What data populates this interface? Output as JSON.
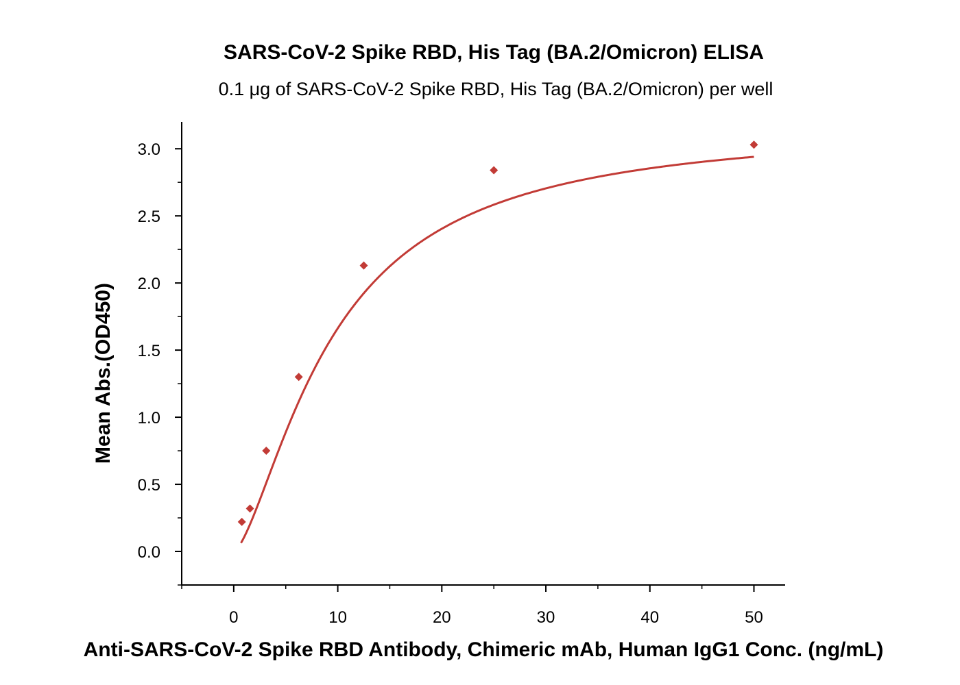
{
  "chart_data": {
    "type": "scatter",
    "title": "SARS-CoV-2 Spike RBD, His Tag (BA.2/Omicron) ELISA",
    "subtitle": "0.1 μg of SARS-CoV-2 Spike RBD, His Tag (BA.2/Omicron) per well",
    "xlabel": "Anti-SARS-CoV-2 Spike RBD Antibody, Chimeric mAb, Human IgG1 Conc. (ng/mL)",
    "ylabel": "Mean Abs.(OD450)",
    "xlim": [
      -5,
      53
    ],
    "ylim": [
      -0.25,
      3.2
    ],
    "x_ticks": [
      0,
      10,
      20,
      30,
      40,
      50
    ],
    "x_tick_labels": [
      "0",
      "10",
      "20",
      "30",
      "40",
      "50"
    ],
    "y_ticks": [
      0.0,
      0.5,
      1.0,
      1.5,
      2.0,
      2.5,
      3.0
    ],
    "y_tick_labels": [
      "0.0",
      "0.5",
      "1.0",
      "1.5",
      "2.0",
      "2.5",
      "3.0"
    ],
    "grid": false,
    "marker_color": "#c23b36",
    "curve_color": "#c23b36",
    "series": [
      {
        "name": "Mean Abs.(OD450)",
        "x": [
          0.78,
          1.56,
          3.125,
          6.25,
          12.5,
          25,
          50
        ],
        "y": [
          0.22,
          0.32,
          0.75,
          1.3,
          2.13,
          2.84,
          3.03
        ]
      }
    ],
    "fit_curve": {
      "model": "4PL",
      "x_range": [
        0.7,
        50
      ],
      "params": {
        "bottom": 0,
        "top": 3.18,
        "ec50": 9.41,
        "hill": 1.5
      }
    }
  }
}
